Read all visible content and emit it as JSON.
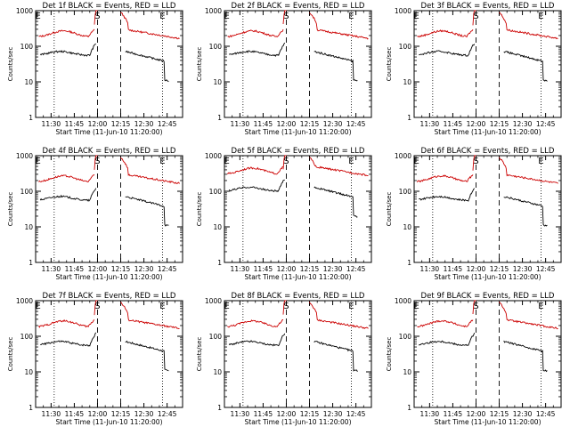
{
  "chart_data": [
    {
      "type": "line",
      "title": "Det 1f BLACK = Events, RED = LLD",
      "ylabel": "Counts/sec",
      "xlabel": "Start Time (11-Jun-10 11:20:00)",
      "xticks": [
        "11:30",
        "11:45",
        "12:00",
        "12:15",
        "12:30",
        "12:45"
      ],
      "yticks": [
        "1",
        "10",
        "100",
        "1000"
      ],
      "ylim": [
        1,
        1000
      ],
      "yscale": "log",
      "markers": [
        "E",
        "S",
        "E"
      ],
      "series": [
        {
          "name": "Events",
          "color": "#000000"
        },
        {
          "name": "LLD",
          "color": "#cc0000"
        }
      ]
    },
    {
      "type": "line",
      "title": "Det 2f BLACK = Events, RED = LLD",
      "ylabel": "Counts/sec",
      "xlabel": "Start Time (11-Jun-10 11:20:00)",
      "xticks": [
        "11:30",
        "11:45",
        "12:00",
        "12:15",
        "12:30",
        "12:45"
      ],
      "yticks": [
        "1",
        "10",
        "100",
        "1000"
      ],
      "ylim": [
        1,
        1000
      ],
      "yscale": "log",
      "markers": [
        "E",
        "S",
        "E"
      ],
      "series": [
        {
          "name": "Events",
          "color": "#000000"
        },
        {
          "name": "LLD",
          "color": "#cc0000"
        }
      ]
    },
    {
      "type": "line",
      "title": "Det 3f BLACK = Events, RED = LLD",
      "ylabel": "Counts/sec",
      "xlabel": "Start Time (11-Jun-10 11:20:00)",
      "xticks": [
        "11:30",
        "11:45",
        "12:00",
        "12:15",
        "12:30",
        "12:45"
      ],
      "yticks": [
        "1",
        "10",
        "100",
        "1000"
      ],
      "ylim": [
        1,
        1000
      ],
      "yscale": "log",
      "markers": [
        "E",
        "S",
        "E"
      ],
      "series": [
        {
          "name": "Events",
          "color": "#000000"
        },
        {
          "name": "LLD",
          "color": "#cc0000"
        }
      ]
    },
    {
      "type": "line",
      "title": "Det 4f BLACK = Events, RED = LLD",
      "ylabel": "Counts/sec",
      "xlabel": "Start Time (11-Jun-10 11:20:00)",
      "xticks": [
        "11:30",
        "11:45",
        "12:00",
        "12:15",
        "12:30",
        "12:45"
      ],
      "yticks": [
        "1",
        "10",
        "100",
        "1000"
      ],
      "ylim": [
        1,
        1000
      ],
      "yscale": "log",
      "markers": [
        "E",
        "S",
        "E"
      ],
      "series": [
        {
          "name": "Events",
          "color": "#000000"
        },
        {
          "name": "LLD",
          "color": "#cc0000"
        }
      ]
    },
    {
      "type": "line",
      "title": "Det 5f BLACK = Events, RED = LLD",
      "ylabel": "Counts/sec",
      "xlabel": "Start Time (11-Jun-10 11:20:00)",
      "xticks": [
        "11:30",
        "11:45",
        "12:00",
        "12:15",
        "12:30",
        "12:45"
      ],
      "yticks": [
        "1",
        "10",
        "100",
        "1000"
      ],
      "ylim": [
        1,
        1000
      ],
      "yscale": "log",
      "markers": [
        "E",
        "S",
        "E"
      ],
      "series": [
        {
          "name": "Events",
          "color": "#000000"
        },
        {
          "name": "LLD",
          "color": "#cc0000"
        }
      ]
    },
    {
      "type": "line",
      "title": "Det 6f BLACK = Events, RED = LLD",
      "ylabel": "Counts/sec",
      "xlabel": "Start Time (11-Jun-10 11:20:00)",
      "xticks": [
        "11:30",
        "11:45",
        "12:00",
        "12:15",
        "12:30",
        "12:45"
      ],
      "yticks": [
        "1",
        "10",
        "100",
        "1000"
      ],
      "ylim": [
        1,
        1000
      ],
      "yscale": "log",
      "markers": [
        "E",
        "S",
        "E"
      ],
      "series": [
        {
          "name": "Events",
          "color": "#000000"
        },
        {
          "name": "LLD",
          "color": "#cc0000"
        }
      ]
    },
    {
      "type": "line",
      "title": "Det 7f BLACK = Events, RED = LLD",
      "ylabel": "Counts/sec",
      "xlabel": "Start Time (11-Jun-10 11:20:00)",
      "xticks": [
        "11:30",
        "11:45",
        "12:00",
        "12:15",
        "12:30",
        "12:45"
      ],
      "yticks": [
        "1",
        "10",
        "100",
        "1000"
      ],
      "ylim": [
        1,
        1000
      ],
      "yscale": "log",
      "markers": [
        "E",
        "S",
        "E"
      ],
      "series": [
        {
          "name": "Events",
          "color": "#000000"
        },
        {
          "name": "LLD",
          "color": "#cc0000"
        }
      ]
    },
    {
      "type": "line",
      "title": "Det 8f BLACK = Events, RED = LLD",
      "ylabel": "Counts/sec",
      "xlabel": "Start Time (11-Jun-10 11:20:00)",
      "xticks": [
        "11:30",
        "11:45",
        "12:00",
        "12:15",
        "12:30",
        "12:45"
      ],
      "yticks": [
        "1",
        "10",
        "100",
        "1000"
      ],
      "ylim": [
        1,
        1000
      ],
      "yscale": "log",
      "markers": [
        "E",
        "S",
        "E"
      ],
      "series": [
        {
          "name": "Events",
          "color": "#000000"
        },
        {
          "name": "LLD",
          "color": "#cc0000"
        }
      ]
    },
    {
      "type": "line",
      "title": "Det 9f BLACK = Events, RED = LLD",
      "ylabel": "Counts/sec",
      "xlabel": "Start Time (11-Jun-10 11:20:00)",
      "xticks": [
        "11:30",
        "11:45",
        "12:00",
        "12:15",
        "12:30",
        "12:45"
      ],
      "yticks": [
        "1",
        "10",
        "100",
        "1000"
      ],
      "ylim": [
        1,
        1000
      ],
      "yscale": "log",
      "markers": [
        "E",
        "S",
        "E"
      ],
      "series": [
        {
          "name": "Events",
          "color": "#000000"
        },
        {
          "name": "LLD",
          "color": "#cc0000"
        }
      ]
    }
  ]
}
